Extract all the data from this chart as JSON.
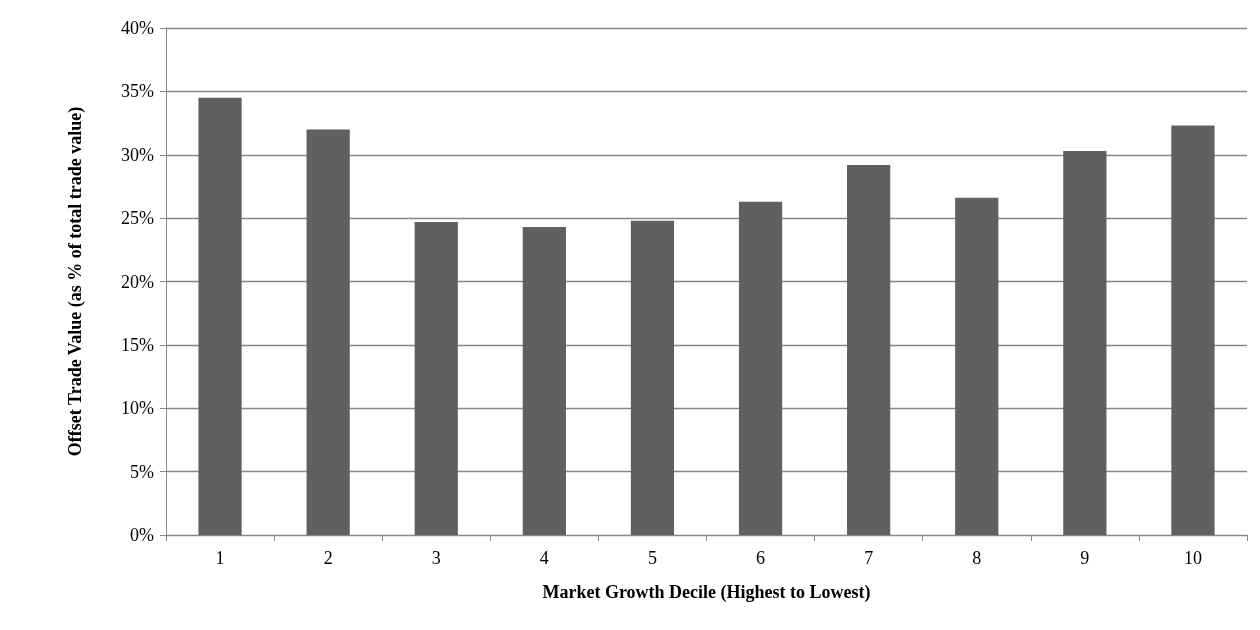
{
  "chart_data": {
    "type": "bar",
    "xlabel": "Market Growth Decile (Highest to Lowest)",
    "ylabel": "Offset Trade Value (as % of total trade value)",
    "categories": [
      "1",
      "2",
      "3",
      "4",
      "5",
      "6",
      "7",
      "8",
      "9",
      "10"
    ],
    "values": [
      34.5,
      32.0,
      24.7,
      24.3,
      24.8,
      26.3,
      29.2,
      26.6,
      30.3,
      32.3
    ],
    "color": "#606060",
    "ylim": [
      0,
      40
    ],
    "yticks": [
      {
        "value": 0,
        "label": "0%"
      },
      {
        "value": 5,
        "label": "5%"
      },
      {
        "value": 10,
        "label": "10%"
      },
      {
        "value": 15,
        "label": "15%"
      },
      {
        "value": 20,
        "label": "20%"
      },
      {
        "value": 25,
        "label": "25%"
      },
      {
        "value": 30,
        "label": "30%"
      },
      {
        "value": 35,
        "label": "35%"
      },
      {
        "value": 40,
        "label": "40%"
      }
    ],
    "grid": "y"
  }
}
